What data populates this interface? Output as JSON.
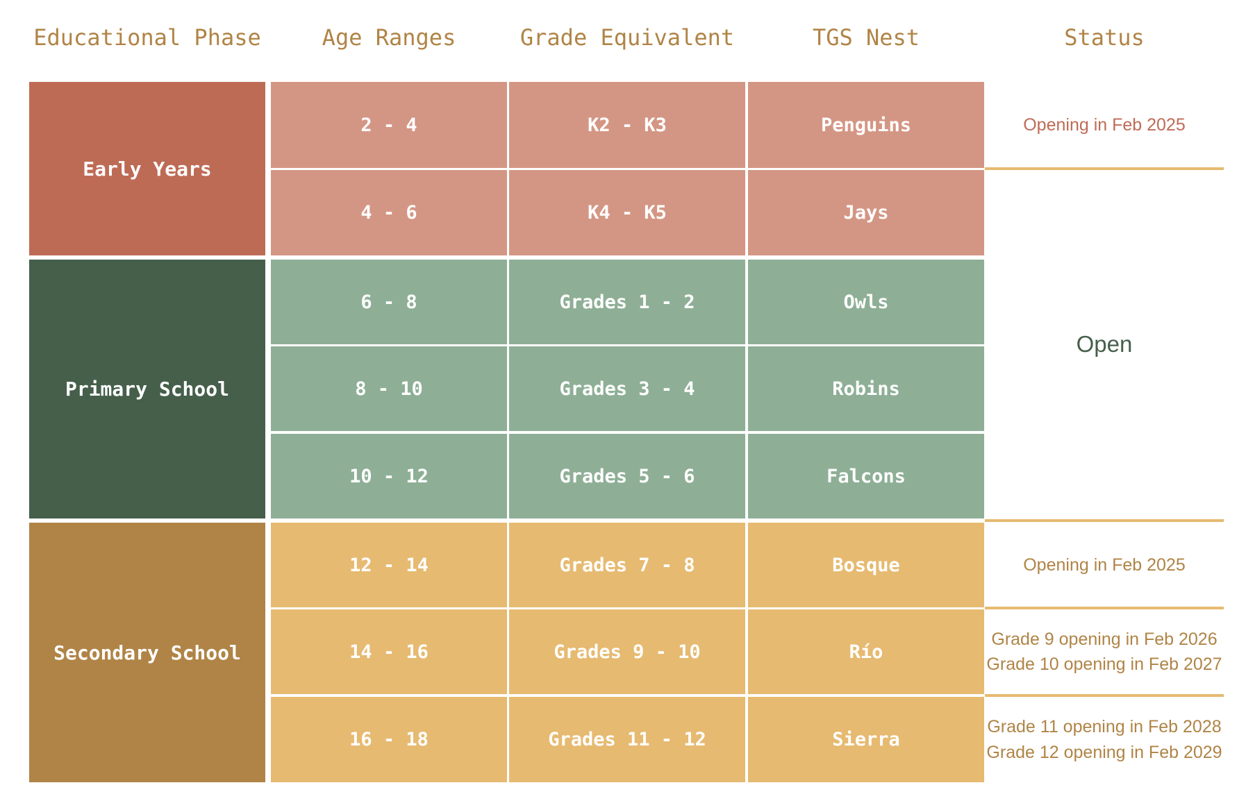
{
  "headers": {
    "phase": "Educational Phase",
    "age": "Age Ranges",
    "grade": "Grade Equivalent",
    "nest": "TGS Nest",
    "status": "Status"
  },
  "phases": [
    {
      "label": "Early Years",
      "color": "#be6b56"
    },
    {
      "label": "Primary School",
      "color": "#455f4b"
    },
    {
      "label": "Secondary School",
      "color": "#b08446"
    }
  ],
  "rows": [
    {
      "age": "2 - 4",
      "grade": "K2 - K3",
      "nest": "Penguins"
    },
    {
      "age": "4 - 6",
      "grade": "K4 - K5",
      "nest": "Jays"
    },
    {
      "age": "6 - 8",
      "grade": "Grades 1 - 2",
      "nest": "Owls"
    },
    {
      "age": "8 - 10",
      "grade": "Grades 3 - 4",
      "nest": "Robins"
    },
    {
      "age": "10 - 12",
      "grade": "Grades 5 - 6",
      "nest": "Falcons"
    },
    {
      "age": "12 - 14",
      "grade": "Grades 7 - 8",
      "nest": "Bosque"
    },
    {
      "age": "14 - 16",
      "grade": "Grades 9 - 10",
      "nest": "Río"
    },
    {
      "age": "16 - 18",
      "grade": "Grades 11 - 12",
      "nest": "Sierra"
    }
  ],
  "statuses": {
    "early_opening": "Opening in Feb 2025",
    "open": "Open",
    "secondary_opening": "Opening in Feb 2025",
    "grade9": "Grade 9 opening in Feb 2026",
    "grade10": "Grade 10 opening in Feb 2027",
    "grade11": "Grade 11 opening in Feb 2028",
    "grade12": "Grade 12 opening in Feb 2029"
  },
  "colors": {
    "header_text": "#b08446",
    "early_light": "#d49684",
    "primary_light": "#8eaf96",
    "secondary_light": "#e6ba71",
    "status_early": "#be6b56",
    "status_open": "#455f4b",
    "status_secondary": "#b08446",
    "divider": "#e6ba71"
  }
}
